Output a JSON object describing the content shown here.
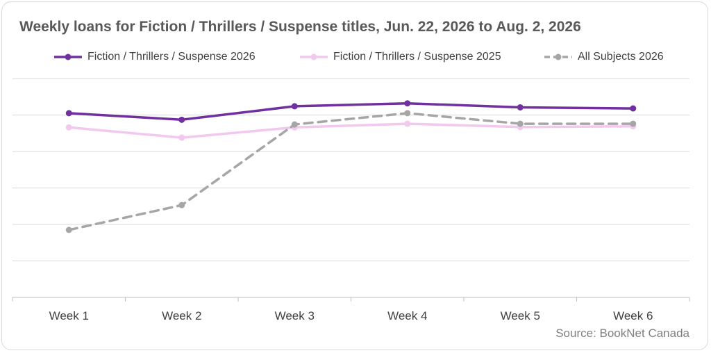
{
  "chart_data": {
    "type": "line",
    "title": "Weekly loans for Fiction / Thrillers / Suspense titles, Jun. 22, 2026 to Aug. 2, 2026",
    "xlabel": "",
    "ylabel": "",
    "categories": [
      "Week 1",
      "Week 2",
      "Week 3",
      "Week 4",
      "Week 5",
      "Week 6"
    ],
    "ylim": [
      0,
      6
    ],
    "y_tick_labels_shown": false,
    "grid": true,
    "legend_position": "top",
    "series": [
      {
        "name": "Fiction / Thrillers / Suspense 2026",
        "values": [
          5.05,
          4.87,
          5.24,
          5.32,
          5.21,
          5.18
        ],
        "color": "#7030a0",
        "dash": "solid"
      },
      {
        "name": "Fiction / Thrillers / Suspense 2025",
        "values": [
          4.66,
          4.38,
          4.66,
          4.76,
          4.67,
          4.69
        ],
        "color": "#f2c8ee",
        "dash": "solid"
      },
      {
        "name": "All Subjects 2026",
        "values": [
          1.85,
          2.53,
          4.74,
          5.05,
          4.76,
          4.76
        ],
        "color": "#a6a6a6",
        "dash": "dashed"
      }
    ],
    "source": "Source: BookNet Canada"
  }
}
